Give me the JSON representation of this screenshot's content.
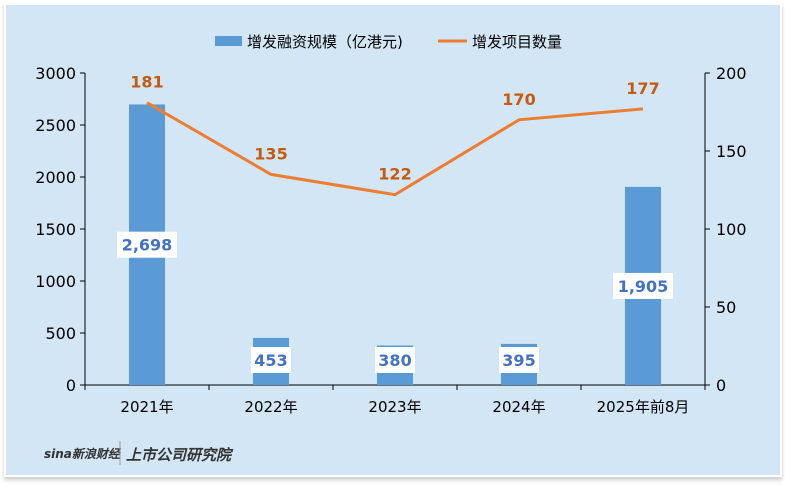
{
  "chart_data": {
    "type": "bar+line",
    "categories": [
      "2021年",
      "2022年",
      "2023年",
      "2024年",
      "2025年前8月"
    ],
    "series": [
      {
        "name": "增发融资规模（亿港元)",
        "type": "bar",
        "axis": "left",
        "values": [
          2698,
          453,
          380,
          395,
          1905
        ],
        "labels": [
          "2,698",
          "453",
          "380",
          "395",
          "1,905"
        ],
        "color": "#5b9bd5"
      },
      {
        "name": "增发项目数量",
        "type": "line",
        "axis": "right",
        "values": [
          181,
          135,
          122,
          170,
          177
        ],
        "labels": [
          "181",
          "135",
          "122",
          "170",
          "177"
        ],
        "color": "#ed7d31"
      }
    ],
    "y_left": {
      "range": [
        0,
        3000
      ],
      "ticks": [
        "0",
        "500",
        "1000",
        "1500",
        "2000",
        "2500",
        "3000"
      ]
    },
    "y_right": {
      "range": [
        0,
        200
      ],
      "ticks": [
        "0",
        "50",
        "100",
        "150",
        "200"
      ]
    },
    "legend_position": "top",
    "grid": false,
    "label_color": "#c55a11",
    "bar_label_color": "#4472c4"
  },
  "watermark": {
    "brand1": "sina新浪财经",
    "brand2": "上市公司研究院"
  }
}
